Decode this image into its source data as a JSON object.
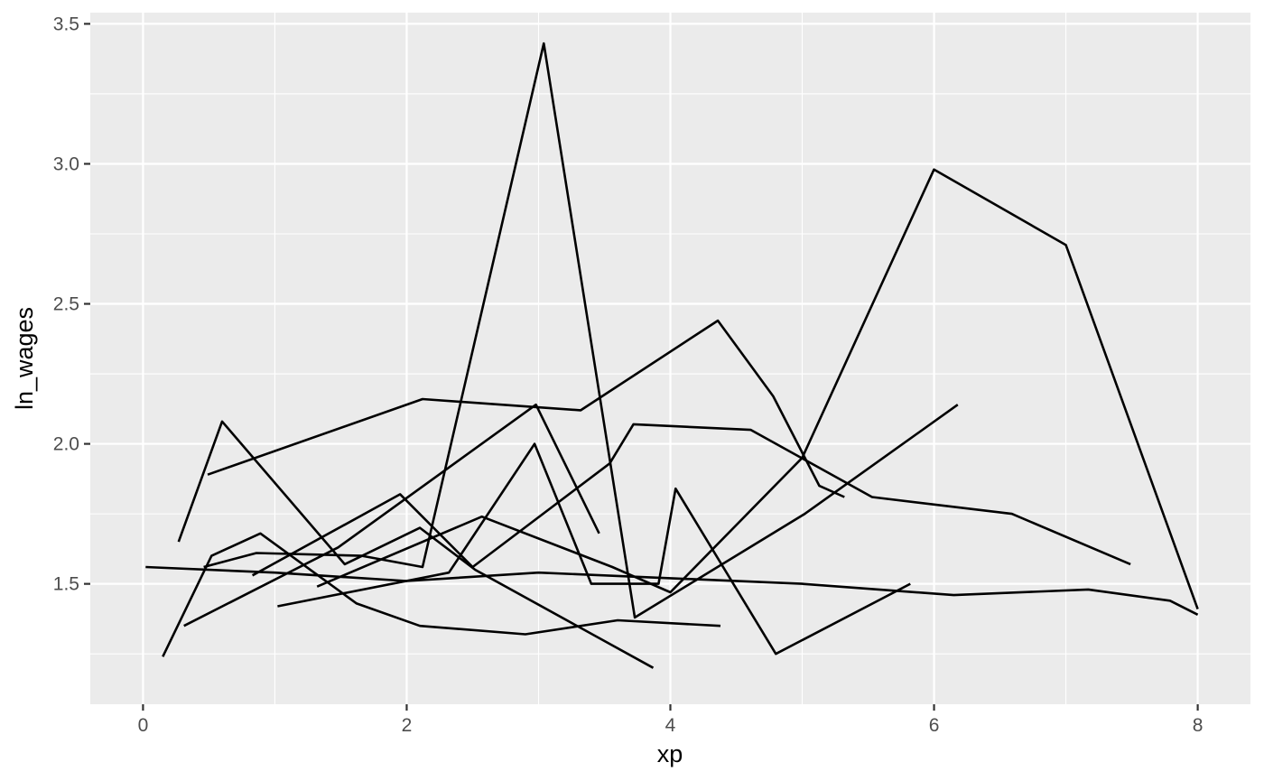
{
  "chart_data": {
    "type": "line",
    "xlabel": "xp",
    "ylabel": "ln_wages",
    "xlim": [
      -0.4,
      8.4
    ],
    "ylim": [
      1.07,
      3.54
    ],
    "x_ticks": [
      0,
      2,
      4,
      6,
      8
    ],
    "x_tick_labels": [
      "0",
      "2",
      "4",
      "6",
      "8"
    ],
    "y_ticks": [
      1.5,
      2.0,
      2.5,
      3.0,
      3.5
    ],
    "y_tick_labels": [
      "1.5",
      "2.0",
      "2.5",
      "3.0",
      "3.5"
    ],
    "grid": true,
    "legend": "none",
    "colors": {
      "panel": "#EBEBEB",
      "grid": "#FFFFFF",
      "line": "#000000",
      "tick_label": "#4D4D4D"
    },
    "series": [
      {
        "x": [
          0.27,
          0.6,
          1.53,
          2.1,
          2.52,
          3.87
        ],
        "y": [
          1.65,
          2.08,
          1.57,
          1.7,
          1.55,
          1.2
        ]
      },
      {
        "x": [
          0.49,
          2.12,
          3.32,
          4.36,
          4.78,
          5.13,
          5.32
        ],
        "y": [
          1.89,
          2.16,
          2.12,
          2.44,
          2.17,
          1.85,
          1.81
        ]
      },
      {
        "x": [
          0.15,
          0.52,
          0.89,
          1.62,
          2.1,
          2.9,
          3.6,
          4.38
        ],
        "y": [
          1.24,
          1.6,
          1.68,
          1.43,
          1.35,
          1.32,
          1.37,
          1.35
        ]
      },
      {
        "x": [
          0.31,
          1.48,
          2.98,
          3.46
        ],
        "y": [
          1.35,
          1.63,
          2.14,
          1.68
        ]
      },
      {
        "x": [
          0.46,
          0.86,
          1.66,
          2.12,
          3.04,
          3.73,
          5.02,
          6.18
        ],
        "y": [
          1.56,
          1.61,
          1.6,
          1.56,
          3.43,
          1.38,
          1.75,
          2.14
        ]
      },
      {
        "x": [
          1.02,
          2.32,
          2.97,
          3.4,
          3.91,
          4.04,
          4.8,
          5.82
        ],
        "y": [
          1.42,
          1.54,
          2.0,
          1.5,
          1.5,
          1.84,
          1.25,
          1.5
        ]
      },
      {
        "x": [
          0.02,
          1.0,
          2.0,
          3.0,
          4.0,
          5.0,
          6.15,
          7.17,
          7.79,
          8.0
        ],
        "y": [
          1.56,
          1.54,
          1.51,
          1.54,
          1.52,
          1.5,
          1.46,
          1.48,
          1.44,
          1.39
        ]
      },
      {
        "x": [
          1.32,
          2.57,
          3.56,
          4.0,
          5.0,
          6.0,
          7.0,
          8.0
        ],
        "y": [
          1.49,
          1.74,
          1.56,
          1.47,
          1.95,
          2.98,
          2.71,
          1.41
        ]
      },
      {
        "x": [
          0.83,
          1.95,
          2.5,
          3.54,
          3.72,
          4.61,
          5.53,
          6.59,
          7.49
        ],
        "y": [
          1.53,
          1.82,
          1.56,
          1.93,
          2.07,
          2.05,
          1.81,
          1.75,
          1.57
        ]
      }
    ]
  }
}
